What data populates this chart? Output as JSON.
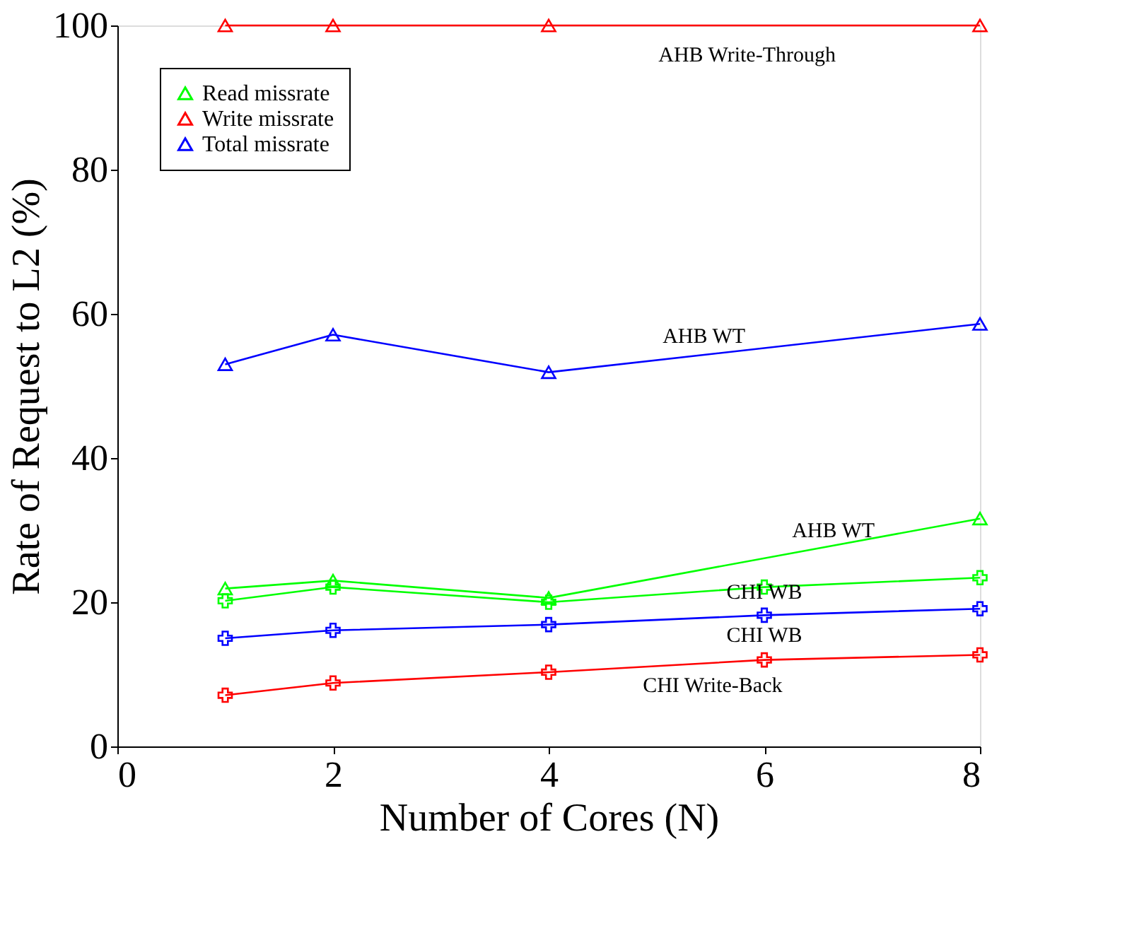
{
  "chart_data": {
    "type": "line",
    "xlabel": "Number of Cores (N)",
    "ylabel": "Rate of Request to L2 (%)",
    "xlim": [
      0,
      8
    ],
    "ylim": [
      0,
      100
    ],
    "xticks": [
      0,
      2,
      4,
      6,
      8
    ],
    "yticks": [
      0,
      20,
      40,
      60,
      80,
      100
    ],
    "grid": false,
    "legend": "top left",
    "series": [
      {
        "name": "Read missrate",
        "color": "#00ff00",
        "marker": "triangle",
        "x": [
          1,
          2,
          4,
          8
        ],
        "values": [
          21.9,
          23.0,
          20.6,
          31.6
        ]
      },
      {
        "name": "Write missrate",
        "color": "#ff0000",
        "marker": "triangle",
        "x": [
          1,
          2,
          4,
          8
        ],
        "values": [
          100,
          100,
          100,
          100
        ]
      },
      {
        "name": "Total missrate",
        "color": "#0000ff",
        "marker": "triangle",
        "x": [
          1,
          2,
          4,
          8
        ],
        "values": [
          53.0,
          57.1,
          51.9,
          58.6
        ]
      },
      {
        "color": "#00ff00",
        "marker": "cross",
        "x": [
          1,
          2,
          4,
          6,
          8
        ],
        "values": [
          20.2,
          22.1,
          20.0,
          22.1,
          23.4
        ]
      },
      {
        "color": "#0000ff",
        "marker": "cross",
        "x": [
          1,
          2,
          4,
          6,
          8
        ],
        "values": [
          15.0,
          16.1,
          16.9,
          18.2,
          19.1
        ]
      },
      {
        "color": "#ff0000",
        "marker": "cross",
        "x": [
          1,
          2,
          4,
          6,
          8
        ],
        "values": [
          7.1,
          8.8,
          10.3,
          12.0,
          12.7
        ]
      }
    ],
    "annotations": [
      "AHB Write-Through",
      "AHB WT",
      "AHB WT",
      "CHI WB",
      "CHI WB",
      "CHI Write-Back"
    ]
  }
}
